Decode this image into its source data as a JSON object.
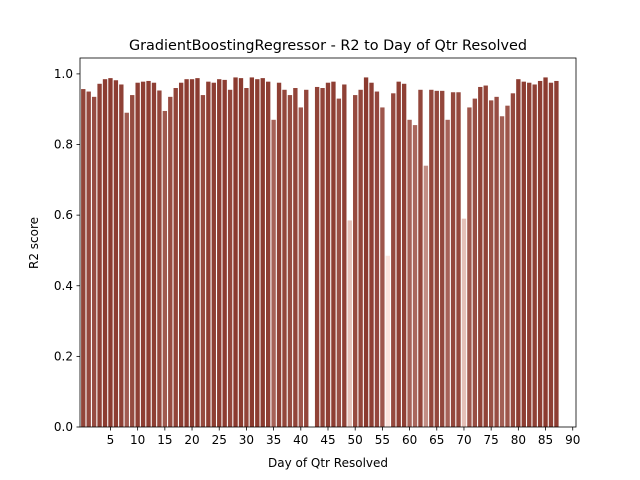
{
  "chart_data": {
    "type": "bar",
    "title": "GradientBoostingRegressor - R2 to Day of Qtr Resolved",
    "x_label": "Day of Qtr Resolved",
    "y_label": "R2 score",
    "x": [
      0,
      1,
      2,
      3,
      4,
      5,
      6,
      7,
      8,
      9,
      10,
      11,
      12,
      13,
      14,
      15,
      16,
      17,
      18,
      19,
      20,
      21,
      22,
      23,
      24,
      25,
      26,
      27,
      28,
      29,
      30,
      31,
      32,
      33,
      34,
      35,
      36,
      37,
      38,
      39,
      40,
      41,
      42,
      43,
      44,
      45,
      46,
      47,
      48,
      49,
      50,
      51,
      52,
      53,
      54,
      55,
      56,
      57,
      58,
      59,
      60,
      61,
      62,
      63,
      64,
      65,
      66,
      67,
      68,
      69,
      70,
      71,
      72,
      73,
      74,
      75,
      76,
      77,
      78,
      79,
      80,
      81,
      82,
      83,
      84,
      85,
      86,
      87
    ],
    "values": [
      0.957,
      0.95,
      0.935,
      0.972,
      0.985,
      0.988,
      0.982,
      0.97,
      0.89,
      0.94,
      0.975,
      0.978,
      0.98,
      0.975,
      0.953,
      0.895,
      0.935,
      0.96,
      0.975,
      0.985,
      0.985,
      0.988,
      0.94,
      0.978,
      0.975,
      0.985,
      0.983,
      0.955,
      0.99,
      0.988,
      0.96,
      0.99,
      0.985,
      0.988,
      0.978,
      0.87,
      0.975,
      0.955,
      0.94,
      0.96,
      0.905,
      0.955,
      null,
      0.963,
      0.96,
      0.975,
      0.978,
      0.93,
      0.97,
      0.585,
      0.94,
      0.955,
      0.99,
      0.975,
      0.95,
      0.905,
      0.485,
      0.945,
      0.978,
      0.972,
      0.87,
      0.855,
      0.955,
      0.74,
      0.955,
      0.952,
      0.952,
      0.87,
      0.948,
      0.948,
      0.59,
      0.905,
      0.93,
      0.963,
      0.967,
      0.925,
      0.935,
      0.88,
      0.91,
      0.945,
      0.985,
      0.978,
      0.975,
      0.97,
      0.98,
      0.99,
      0.975,
      0.98
    ],
    "color_range": [
      "#fbe3dc",
      "#8b3a2f"
    ],
    "xlim": [
      -0.6,
      90.6
    ],
    "ylim": [
      0,
      1.045
    ],
    "xticks": [
      5,
      10,
      15,
      20,
      25,
      30,
      35,
      40,
      45,
      50,
      55,
      60,
      65,
      70,
      75,
      80,
      85,
      90
    ],
    "yticks": [
      {
        "value": 0,
        "label": "0.0"
      },
      {
        "value": 0.2,
        "label": "0.2"
      },
      {
        "value": 0.4,
        "label": "0.4"
      },
      {
        "value": 0.6,
        "label": "0.6"
      },
      {
        "value": 0.8,
        "label": "0.8"
      },
      {
        "value": 1,
        "label": "1.0"
      }
    ]
  }
}
